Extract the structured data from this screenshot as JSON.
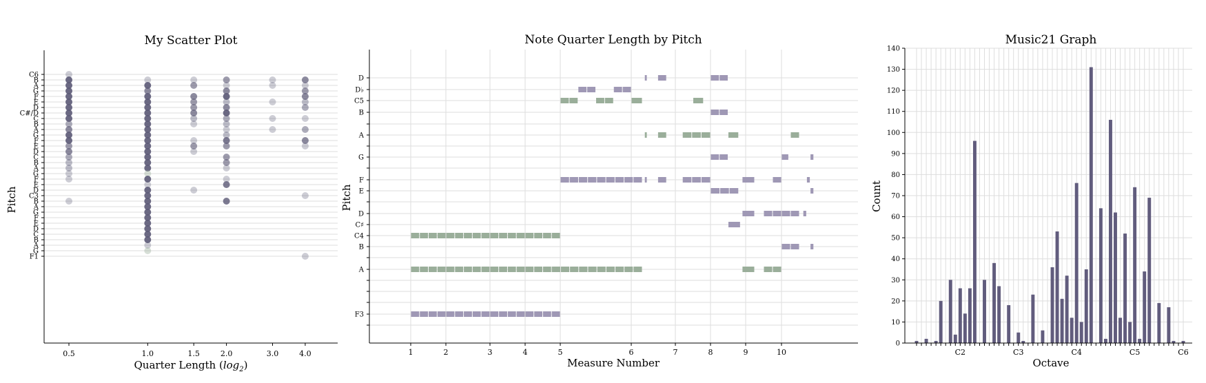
{
  "chart_data": [
    {
      "type": "scatter",
      "title": "My Scatter Plot",
      "xlabel": "Quarter Length (log2)",
      "xlabel_text": "Quarter Length (",
      "xlabel_math": "log",
      "xlabel_sub": "2",
      "xlabel_close": ")",
      "ylabel": "Pitch",
      "x_scale": "log2",
      "x_ticks": [
        "0.5",
        "1.0",
        "1.5",
        "2.0",
        "3.0",
        "4.0"
      ],
      "y_ticks": [
        "C6",
        "B",
        "A",
        "G",
        "F",
        "E",
        "D",
        "C#/D",
        "C",
        "B",
        "A",
        "G",
        "F",
        "E",
        "D",
        "C",
        "B",
        "A",
        "G",
        "F",
        "E",
        "D",
        "C3",
        "B",
        "A",
        "G",
        "F",
        "E",
        "D",
        "C",
        "B",
        "A",
        "G",
        "F1"
      ],
      "grid": "horizontal",
      "points": [
        {
          "x": 0.5,
          "y": "C6",
          "a": 0.3
        },
        {
          "x": 0.5,
          "y": "A",
          "a": 0.9
        },
        {
          "x": 0.5,
          "y": "G",
          "a": 0.9
        },
        {
          "x": 0.5,
          "y": "F",
          "a": 0.9
        },
        {
          "x": 0.5,
          "y": "E",
          "a": 0.9
        },
        {
          "x": 0.5,
          "y": "D",
          "a": 0.9
        },
        {
          "x": 0.5,
          "y": "C#/D",
          "a": 0.9
        },
        {
          "x": 0.5,
          "y": "C",
          "a": 0.9
        },
        {
          "x": 0.5,
          "y": "B",
          "a": 0.9
        },
        {
          "x": 0.5,
          "y": "A",
          "a": 0.7
        },
        {
          "x": 0.5,
          "y": "G",
          "a": 0.9
        },
        {
          "x": 0.5,
          "y": "F",
          "a": 0.9
        },
        {
          "x": 0.5,
          "y": "E",
          "a": 0.6
        },
        {
          "x": 0.5,
          "y": "D",
          "a": 0.7
        },
        {
          "x": 0.5,
          "y": "C",
          "a": 0.5
        },
        {
          "x": 0.5,
          "y": "B",
          "a": 0.5
        },
        {
          "x": 0.5,
          "y": "A",
          "a": 0.4
        },
        {
          "x": 0.5,
          "y": "B",
          "a": 0.4
        },
        {
          "x": 0.5,
          "y": "G",
          "a": 0.3
        },
        {
          "x": 0.5,
          "y": "F",
          "a": 0.3
        },
        {
          "x": 0.5,
          "y": "B",
          "a": 0.3
        },
        {
          "x": 1.0,
          "y": "B",
          "a": 0.3
        },
        {
          "x": 1.0,
          "y": "A",
          "a": 0.9
        },
        {
          "x": 1.0,
          "y": "G",
          "a": 0.7
        },
        {
          "x": 1.0,
          "y": "F",
          "a": 0.9
        },
        {
          "x": 1.0,
          "y": "E",
          "a": 0.9
        },
        {
          "x": 1.0,
          "y": "D",
          "a": 0.9
        },
        {
          "x": 1.0,
          "y": "C#/D",
          "a": 0.9
        },
        {
          "x": 1.0,
          "y": "C",
          "a": 0.9
        },
        {
          "x": 1.0,
          "y": "B",
          "a": 0.9
        },
        {
          "x": 1.0,
          "y": "A",
          "a": 0.9
        },
        {
          "x": 1.0,
          "y": "G",
          "a": 0.9
        },
        {
          "x": 1.0,
          "y": "F",
          "a": 0.9
        },
        {
          "x": 1.0,
          "y": "E",
          "a": 0.9
        },
        {
          "x": 1.0,
          "y": "D",
          "a": 0.9
        },
        {
          "x": 1.0,
          "y": "C",
          "a": 0.9
        },
        {
          "x": 1.0,
          "y": "B",
          "a": 0.9
        },
        {
          "x": 1.0,
          "y": "A",
          "a": 0.9
        },
        {
          "x": 1.0,
          "y": "G",
          "a": 0.4
        },
        {
          "x": 1.0,
          "y": "F",
          "a": 0.9
        },
        {
          "x": 1.0,
          "y": "E",
          "a": 0.3
        },
        {
          "x": 1.0,
          "y": "D",
          "a": 0.9
        },
        {
          "x": 1.0,
          "y": "C3",
          "a": 0.9
        },
        {
          "x": 1.0,
          "y": "B",
          "a": 0.9
        },
        {
          "x": 1.0,
          "y": "A",
          "a": 0.9
        },
        {
          "x": 1.0,
          "y": "G",
          "a": 0.9
        },
        {
          "x": 1.0,
          "y": "F",
          "a": 0.9
        },
        {
          "x": 1.0,
          "y": "E",
          "a": 0.9
        },
        {
          "x": 1.0,
          "y": "D",
          "a": 0.9
        },
        {
          "x": 1.0,
          "y": "C",
          "a": 0.9
        },
        {
          "x": 1.0,
          "y": "B",
          "a": 0.9
        },
        {
          "x": 1.0,
          "y": "A",
          "a": 0.3
        },
        {
          "x": 1.0,
          "y": "G",
          "a": 0.4
        },
        {
          "x": 1.5,
          "y": "F",
          "a": 0.7
        },
        {
          "x": 1.5,
          "y": "E",
          "a": 0.6
        },
        {
          "x": 1.5,
          "y": "D",
          "a": 0.6
        },
        {
          "x": 1.5,
          "y": "C#/D",
          "a": 0.7
        },
        {
          "x": 1.5,
          "y": "C",
          "a": 0.4
        },
        {
          "x": 1.5,
          "y": "B",
          "a": 0.3
        },
        {
          "x": 1.5,
          "y": "A",
          "a": 0.6
        },
        {
          "x": 1.5,
          "y": "F",
          "a": 0.3
        },
        {
          "x": 1.5,
          "y": "E",
          "a": 0.6
        },
        {
          "x": 1.5,
          "y": "D",
          "a": 0.3
        },
        {
          "x": 1.5,
          "y": "B",
          "a": 0.3
        },
        {
          "x": 1.5,
          "y": "D",
          "a": 0.3
        },
        {
          "x": 2.0,
          "y": "A",
          "a": 0.3
        },
        {
          "x": 2.0,
          "y": "F",
          "a": 0.9
        },
        {
          "x": 2.0,
          "y": "E",
          "a": 0.4
        },
        {
          "x": 2.0,
          "y": "C#/D",
          "a": 0.9
        },
        {
          "x": 2.0,
          "y": "C",
          "a": 0.5
        },
        {
          "x": 2.0,
          "y": "B",
          "a": 0.6
        },
        {
          "x": 2.0,
          "y": "A",
          "a": 0.3
        },
        {
          "x": 2.0,
          "y": "G",
          "a": 0.7
        },
        {
          "x": 2.0,
          "y": "F",
          "a": 0.8
        },
        {
          "x": 2.0,
          "y": "E",
          "a": 0.6
        },
        {
          "x": 2.0,
          "y": "D",
          "a": 0.7
        },
        {
          "x": 2.0,
          "y": "C",
          "a": 0.6
        },
        {
          "x": 2.0,
          "y": "B",
          "a": 0.4
        },
        {
          "x": 2.0,
          "y": "A",
          "a": 0.3
        },
        {
          "x": 2.0,
          "y": "G",
          "a": 0.4
        },
        {
          "x": 2.0,
          "y": "F",
          "a": 0.3
        },
        {
          "x": 2.0,
          "y": "B",
          "a": 0.6
        },
        {
          "x": 2.0,
          "y": "E",
          "a": 0.8
        },
        {
          "x": 2.0,
          "y": "B",
          "a": 0.8
        },
        {
          "x": 3.0,
          "y": "A",
          "a": 0.3
        },
        {
          "x": 3.0,
          "y": "E",
          "a": 0.3
        },
        {
          "x": 3.0,
          "y": "C",
          "a": 0.3
        },
        {
          "x": 3.0,
          "y": "B",
          "a": 0.3
        },
        {
          "x": 3.0,
          "y": "A",
          "a": 0.3
        },
        {
          "x": 4.0,
          "y": "A",
          "a": 0.3
        },
        {
          "x": 4.0,
          "y": "G",
          "a": 0.6
        },
        {
          "x": 4.0,
          "y": "F",
          "a": 0.7
        },
        {
          "x": 4.0,
          "y": "E",
          "a": 0.4
        },
        {
          "x": 4.0,
          "y": "D",
          "a": 0.5
        },
        {
          "x": 4.0,
          "y": "C",
          "a": 0.3
        },
        {
          "x": 4.0,
          "y": "B",
          "a": 0.7
        },
        {
          "x": 4.0,
          "y": "A",
          "a": 0.5
        },
        {
          "x": 4.0,
          "y": "F",
          "a": 0.7
        },
        {
          "x": 4.0,
          "y": "C3",
          "a": 0.3
        },
        {
          "x": 4.0,
          "y": "E",
          "a": 0.3
        },
        {
          "x": 4.0,
          "y": "F1",
          "a": 0.3
        }
      ]
    },
    {
      "type": "horizontal-bar-timeline",
      "title": "Note Quarter Length by Pitch",
      "xlabel": "Measure Number",
      "ylabel": "Pitch",
      "x_ticks": [
        "1",
        "2",
        "3",
        "4",
        "5",
        "6",
        "7",
        "8",
        "9",
        "10"
      ],
      "y_ticks": [
        "D",
        "D♭",
        "C5",
        "B",
        "A",
        "G",
        "F",
        "E",
        "D",
        "C♯",
        "C4",
        "B",
        "A",
        "F3"
      ],
      "bars": [
        {
          "pitch": "D",
          "start": 6.3,
          "end": 6.36,
          "color": "purple"
        },
        {
          "pitch": "D",
          "start": 6.6,
          "end": 6.8,
          "color": "purple"
        },
        {
          "pitch": "D",
          "start": 8.0,
          "end": 8.5,
          "color": "purple"
        },
        {
          "pitch": "D♭",
          "start": 5.25,
          "end": 5.5,
          "color": "purple"
        },
        {
          "pitch": "D♭",
          "start": 5.75,
          "end": 6.0,
          "color": "purple"
        },
        {
          "pitch": "C5",
          "start": 5.0,
          "end": 5.25,
          "color": "green"
        },
        {
          "pitch": "C5",
          "start": 5.5,
          "end": 5.75,
          "color": "green"
        },
        {
          "pitch": "C5",
          "start": 6.0,
          "end": 6.25,
          "color": "green"
        },
        {
          "pitch": "C5",
          "start": 7.5,
          "end": 7.8,
          "color": "green"
        },
        {
          "pitch": "B",
          "start": 8.0,
          "end": 8.5,
          "color": "purple"
        },
        {
          "pitch": "A",
          "start": 4.75,
          "end": 6.25,
          "color": "green"
        },
        {
          "pitch": "A",
          "start": 6.3,
          "end": 6.36,
          "color": "green"
        },
        {
          "pitch": "A",
          "start": 6.6,
          "end": 6.8,
          "color": "green"
        },
        {
          "pitch": "A",
          "start": 7.2,
          "end": 8.0,
          "color": "green"
        },
        {
          "pitch": "A",
          "start": 8.5,
          "end": 8.8,
          "color": "green"
        },
        {
          "pitch": "A",
          "start": 10.25,
          "end": 10.5,
          "color": "green"
        },
        {
          "pitch": "G",
          "start": 8.0,
          "end": 8.5,
          "color": "purple"
        },
        {
          "pitch": "G",
          "start": 10.0,
          "end": 10.2,
          "color": "purple"
        },
        {
          "pitch": "G",
          "start": 10.8,
          "end": 10.9,
          "color": "purple"
        },
        {
          "pitch": "F",
          "start": 5.0,
          "end": 6.25,
          "color": "purple"
        },
        {
          "pitch": "F",
          "start": 6.3,
          "end": 6.36,
          "color": "purple"
        },
        {
          "pitch": "F",
          "start": 6.6,
          "end": 6.8,
          "color": "purple"
        },
        {
          "pitch": "F",
          "start": 7.2,
          "end": 8.0,
          "color": "purple"
        },
        {
          "pitch": "F",
          "start": 8.9,
          "end": 9.25,
          "color": "purple"
        },
        {
          "pitch": "F",
          "start": 9.75,
          "end": 10.0,
          "color": "purple"
        },
        {
          "pitch": "F",
          "start": 10.7,
          "end": 10.8,
          "color": "purple"
        },
        {
          "pitch": "E",
          "start": 8.0,
          "end": 8.8,
          "color": "purple"
        },
        {
          "pitch": "E",
          "start": 10.8,
          "end": 10.9,
          "color": "purple"
        },
        {
          "pitch": "D",
          "start": 8.9,
          "end": 9.25,
          "color": "purple"
        },
        {
          "pitch": "D",
          "start": 9.5,
          "end": 10.5,
          "color": "purple"
        },
        {
          "pitch": "D",
          "start": 10.6,
          "end": 10.7,
          "color": "purple"
        },
        {
          "pitch": "C♯",
          "start": 8.5,
          "end": 8.85,
          "color": "purple"
        },
        {
          "pitch": "C4",
          "start": 1.0,
          "end": 5.0,
          "color": "green"
        },
        {
          "pitch": "B",
          "start": 10.0,
          "end": 10.5,
          "color": "purple"
        },
        {
          "pitch": "B",
          "start": 10.8,
          "end": 10.9,
          "color": "purple"
        },
        {
          "pitch": "A",
          "start": 1.0,
          "end": 5.0,
          "color": "green"
        },
        {
          "pitch": "A",
          "start": 8.9,
          "end": 9.25,
          "color": "green"
        },
        {
          "pitch": "A",
          "start": 9.5,
          "end": 10.0,
          "color": "green"
        },
        {
          "pitch": "F3",
          "start": 1.0,
          "end": 5.0,
          "color": "purple"
        }
      ]
    },
    {
      "type": "bar",
      "title": "Music21 Graph",
      "xlabel": "Octave",
      "ylabel": "Count",
      "ylim": [
        0,
        140
      ],
      "y_ticks": [
        0,
        10,
        20,
        30,
        40,
        50,
        60,
        70,
        80,
        90,
        100,
        110,
        120,
        130,
        140
      ],
      "x_tick_labels": [
        "C2",
        "C3",
        "C4",
        "C5",
        "C6"
      ],
      "values": [
        1,
        0,
        2,
        0,
        1,
        20,
        0,
        30,
        4,
        26,
        14,
        26,
        96,
        0,
        30,
        0,
        38,
        27,
        0,
        18,
        0,
        5,
        1,
        0,
        23,
        0,
        6,
        0,
        36,
        53,
        21,
        32,
        12,
        76,
        10,
        35,
        131,
        0,
        64,
        2,
        106,
        62,
        12,
        52,
        10,
        74,
        2,
        34,
        69,
        0,
        19,
        0,
        17,
        1,
        0,
        1
      ]
    }
  ],
  "colors": {
    "purple": "#9f98b5",
    "green": "#9aae9a",
    "scatter_dark": "#5b5975",
    "bar": "#615c7d",
    "grid": "#dddddd"
  }
}
